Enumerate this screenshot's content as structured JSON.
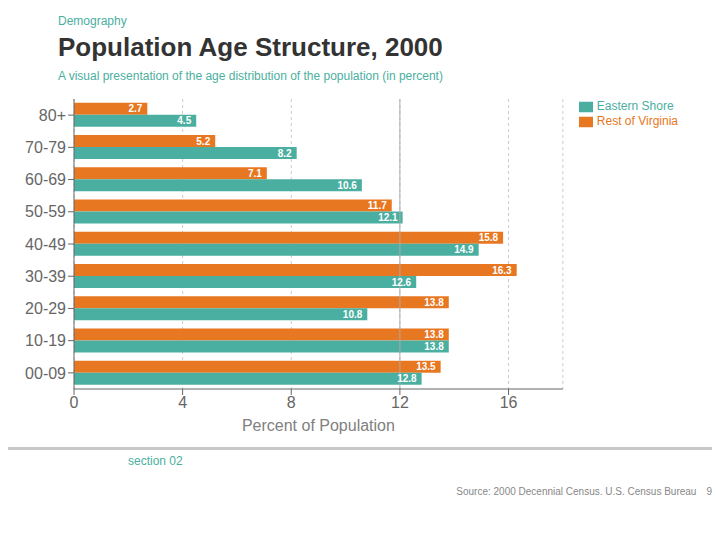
{
  "chart_data": {
    "type": "bar",
    "orientation": "horizontal",
    "title": "Population Age Structure, 2000",
    "subtitle": "A visual presentation of the age distribution of the population (in percent)",
    "xlabel": "Percent of Population",
    "annotations": [
      "Demography",
      "section 02",
      "Source: 2000 Decennial Census. U.S. Census Bureau",
      "9"
    ],
    "categories": [
      "80+",
      "70-79",
      "60-69",
      "50-59",
      "40-49",
      "30-39",
      "20-29",
      "10-19",
      "00-09"
    ],
    "series": [
      {
        "name": "Rest of Virginia",
        "color": "#E87722",
        "values": [
          2.7,
          5.2,
          7.1,
          11.7,
          15.8,
          16.3,
          13.8,
          13.8,
          13.5
        ]
      },
      {
        "name": "Eastern Shore",
        "color": "#4AAFA0",
        "values": [
          4.5,
          8.2,
          10.6,
          12.1,
          14.9,
          12.6,
          10.8,
          13.8,
          12.8
        ]
      }
    ],
    "xlim": [
      0,
      18
    ],
    "xticks": [
      0,
      4,
      8,
      12,
      16
    ],
    "reference_lines": [
      12
    ],
    "grid": true,
    "legend": "right",
    "data_labels": true
  }
}
